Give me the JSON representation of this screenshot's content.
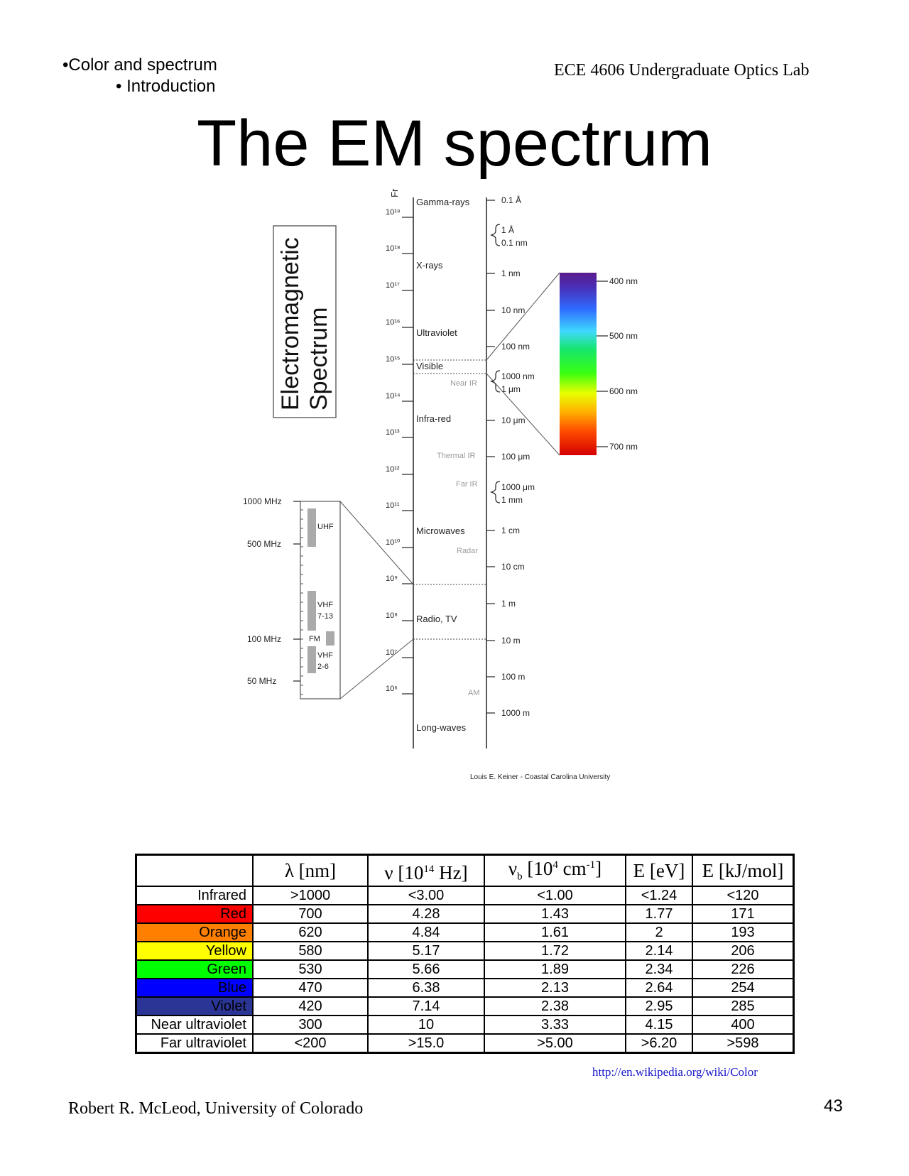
{
  "header": {
    "breadcrumb_1": "•Color and spectrum",
    "breadcrumb_2": "• Introduction",
    "course": "ECE 4606 Undergraduate Optics Lab"
  },
  "title": "The EM spectrum",
  "figure": {
    "box_title_1": "Electromagnetic",
    "box_title_2": "Spectrum",
    "freq_header": "Fr",
    "freq_ticks": [
      "10¹⁹",
      "10¹⁸",
      "10¹⁷",
      "10¹⁶",
      "10¹⁵",
      "10¹⁴",
      "10¹³",
      "10¹²",
      "10¹¹",
      "10¹⁰",
      "10⁹",
      "10⁸",
      "10⁷",
      "10⁶"
    ],
    "bands": [
      "Gamma-rays",
      "X-rays",
      "Ultraviolet",
      "Visible",
      "Infra-red",
      "Microwaves",
      "Radio, TV",
      "Long-waves"
    ],
    "sub_bands": [
      "Near IR",
      "Thermal IR",
      "Far IR",
      "Radar",
      "AM"
    ],
    "wavelengths": [
      "0.1 Å",
      "1 Å",
      "0.1 nm",
      "1 nm",
      "10 nm",
      "100 nm",
      "1000 nm",
      "1 μm",
      "10 μm",
      "100 μm",
      "1000 μm",
      "1 mm",
      "1 cm",
      "10 cm",
      "1 m",
      "10 m",
      "100 m",
      "1000 m"
    ],
    "visible_labels": [
      "400 nm",
      "500 nm",
      "600 nm",
      "700 nm"
    ],
    "radio_freqs": [
      "1000 MHz",
      "500 MHz",
      "100 MHz",
      "50 MHz"
    ],
    "radio_bands": [
      "UHF",
      "VHF",
      "7-13",
      "FM",
      "VHF",
      "2-6"
    ],
    "credit": "Louis E. Keiner - Coastal Carolina University"
  },
  "table": {
    "headers": [
      "",
      "λ [nm]",
      "ν [10",
      "14",
      " Hz]",
      "ν",
      "b",
      " [10",
      "4",
      " cm",
      "-1",
      "]",
      "E [eV]",
      "E [kJ/mol]"
    ],
    "rows": [
      {
        "name": "Infrared",
        "color": "#ffffff",
        "cells": [
          ">1000",
          "<3.00",
          "<1.00",
          "<1.24",
          "<120"
        ]
      },
      {
        "name": "Red",
        "color": "#ff0000",
        "cells": [
          "700",
          "4.28",
          "1.43",
          "1.77",
          "171"
        ]
      },
      {
        "name": "Orange",
        "color": "#ff7f00",
        "cells": [
          "620",
          "4.84",
          "1.61",
          "2",
          "193"
        ]
      },
      {
        "name": "Yellow",
        "color": "#ffff00",
        "cells": [
          "580",
          "5.17",
          "1.72",
          "2.14",
          "206"
        ]
      },
      {
        "name": "Green",
        "color": "#00ff00",
        "cells": [
          "530",
          "5.66",
          "1.89",
          "2.34",
          "226"
        ]
      },
      {
        "name": "Blue",
        "color": "#0000ff",
        "cells": [
          "470",
          "6.38",
          "2.13",
          "2.64",
          "254"
        ]
      },
      {
        "name": "Violet",
        "color": "#2b3596",
        "cells": [
          "420",
          "7.14",
          "2.38",
          "2.95",
          "285"
        ]
      },
      {
        "name": "Near ultraviolet",
        "color": "#ffffff",
        "cells": [
          "300",
          "10",
          "3.33",
          "4.15",
          "400"
        ]
      },
      {
        "name": "Far ultraviolet",
        "color": "#ffffff",
        "cells": [
          "<200",
          ">15.0",
          ">5.00",
          ">6.20",
          ">598"
        ]
      }
    ]
  },
  "source_url": "http://en.wikipedia.org/wiki/Color",
  "footer": {
    "author": "Robert R. McLeod, University of Colorado",
    "page": "43"
  }
}
